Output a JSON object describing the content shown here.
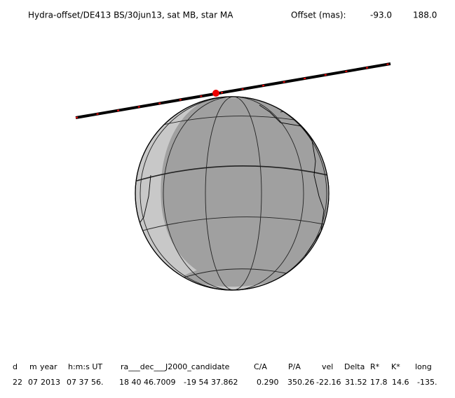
{
  "title": "Hydra-offset/DE413 BS/30jun13, sat MB, star MA",
  "offset": {
    "label": "Offset (mas):",
    "values": [
      "-93.0",
      "188.0"
    ]
  },
  "table": {
    "header": [
      "d",
      "m",
      "year",
      "h:m:s UT",
      "ra___dec___J2000_candidate",
      "C/A",
      "P/A",
      "vel",
      "Delta",
      "R*",
      "K*",
      "long"
    ],
    "row": [
      "22",
      "07",
      "2013",
      "07 37 56.",
      "18 40 46.7009",
      "-19 54 37.862",
      "0.290",
      "350.26",
      "-22.16",
      "31.52",
      "17.8",
      "14.6",
      "-135."
    ]
  }
}
